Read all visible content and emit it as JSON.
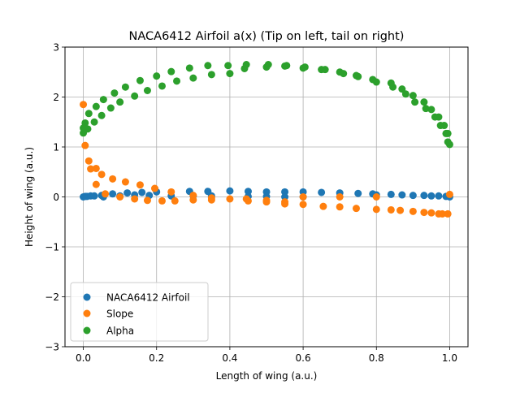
{
  "chart_data": {
    "type": "scatter",
    "title": "NACA6412 Airfoil a(x) (Tip on left, tail on right)",
    "xlabel": "Length of wing (a.u.)",
    "ylabel": "Height of wing (a.u.)",
    "xlim": [
      -0.05,
      1.05
    ],
    "ylim": [
      -3,
      3
    ],
    "xticks": [
      0.0,
      0.2,
      0.4,
      0.6,
      0.8,
      1.0
    ],
    "xtick_labels": [
      "0.0",
      "0.2",
      "0.4",
      "0.6",
      "0.8",
      "1.0"
    ],
    "yticks": [
      -3,
      -2,
      -1,
      0,
      1,
      2,
      3
    ],
    "ytick_labels": [
      "−3",
      "−2",
      "−1",
      "0",
      "1",
      "2",
      "3"
    ],
    "grid": true,
    "legend_position": "lower-left",
    "series": [
      {
        "name": "NACA6412 Airfoil",
        "color": "#1f77b4",
        "points": [
          [
            0.0,
            0.0
          ],
          [
            0.005,
            0.01
          ],
          [
            0.01,
            0.01
          ],
          [
            0.02,
            0.02
          ],
          [
            0.03,
            0.02
          ],
          [
            0.05,
            0.03
          ],
          [
            0.055,
            0.0
          ],
          [
            0.08,
            0.06
          ],
          [
            0.1,
            0.02
          ],
          [
            0.12,
            0.08
          ],
          [
            0.14,
            0.04
          ],
          [
            0.16,
            0.09
          ],
          [
            0.18,
            0.03
          ],
          [
            0.2,
            0.1
          ],
          [
            0.24,
            0.02
          ],
          [
            0.29,
            0.11
          ],
          [
            0.3,
            0.02
          ],
          [
            0.34,
            0.11
          ],
          [
            0.35,
            0.02
          ],
          [
            0.4,
            0.12
          ],
          [
            0.45,
            0.11
          ],
          [
            0.45,
            0.01
          ],
          [
            0.5,
            0.1
          ],
          [
            0.5,
            0.01
          ],
          [
            0.55,
            0.1
          ],
          [
            0.55,
            0.0
          ],
          [
            0.6,
            0.1
          ],
          [
            0.6,
            0.0
          ],
          [
            0.65,
            0.09
          ],
          [
            0.7,
            0.08
          ],
          [
            0.75,
            0.07
          ],
          [
            0.79,
            0.06
          ],
          [
            0.8,
            0.04
          ],
          [
            0.84,
            0.05
          ],
          [
            0.87,
            0.04
          ],
          [
            0.9,
            0.03
          ],
          [
            0.93,
            0.03
          ],
          [
            0.95,
            0.02
          ],
          [
            0.97,
            0.02
          ],
          [
            0.99,
            0.01
          ],
          [
            1.0,
            0.0
          ]
        ]
      },
      {
        "name": "Slope",
        "color": "#ff7f0e",
        "points": [
          [
            0.0,
            1.85
          ],
          [
            0.005,
            1.03
          ],
          [
            0.015,
            0.72
          ],
          [
            0.02,
            0.56
          ],
          [
            0.035,
            0.57
          ],
          [
            0.035,
            0.25
          ],
          [
            0.05,
            0.45
          ],
          [
            0.06,
            0.06
          ],
          [
            0.08,
            0.36
          ],
          [
            0.1,
            0.0
          ],
          [
            0.115,
            0.3
          ],
          [
            0.14,
            -0.04
          ],
          [
            0.155,
            0.24
          ],
          [
            0.175,
            -0.07
          ],
          [
            0.195,
            0.17
          ],
          [
            0.215,
            -0.08
          ],
          [
            0.24,
            0.1
          ],
          [
            0.25,
            -0.08
          ],
          [
            0.3,
            0.03
          ],
          [
            0.3,
            -0.06
          ],
          [
            0.35,
            -0.02
          ],
          [
            0.35,
            -0.06
          ],
          [
            0.4,
            -0.04
          ],
          [
            0.445,
            -0.04
          ],
          [
            0.45,
            -0.08
          ],
          [
            0.5,
            -0.07
          ],
          [
            0.5,
            -0.1
          ],
          [
            0.55,
            -0.1
          ],
          [
            0.55,
            -0.14
          ],
          [
            0.6,
            -0.15
          ],
          [
            0.6,
            0.0
          ],
          [
            0.655,
            -0.19
          ],
          [
            0.7,
            -0.2
          ],
          [
            0.7,
            0.0
          ],
          [
            0.745,
            -0.23
          ],
          [
            0.8,
            -0.25
          ],
          [
            0.8,
            0.0
          ],
          [
            0.84,
            -0.26
          ],
          [
            0.865,
            -0.27
          ],
          [
            0.9,
            -0.29
          ],
          [
            0.93,
            -0.31
          ],
          [
            0.95,
            -0.32
          ],
          [
            0.97,
            -0.34
          ],
          [
            0.98,
            -0.34
          ],
          [
            0.995,
            -0.34
          ],
          [
            1.0,
            0.05
          ]
        ]
      },
      {
        "name": "Alpha",
        "color": "#2ca02c",
        "points": [
          [
            0.0,
            1.28
          ],
          [
            0.0,
            1.38
          ],
          [
            0.005,
            1.48
          ],
          [
            0.012,
            1.36
          ],
          [
            0.015,
            1.67
          ],
          [
            0.03,
            1.5
          ],
          [
            0.035,
            1.81
          ],
          [
            0.05,
            1.63
          ],
          [
            0.055,
            1.95
          ],
          [
            0.075,
            1.78
          ],
          [
            0.085,
            2.08
          ],
          [
            0.1,
            1.9
          ],
          [
            0.115,
            2.2
          ],
          [
            0.14,
            2.02
          ],
          [
            0.155,
            2.33
          ],
          [
            0.175,
            2.13
          ],
          [
            0.2,
            2.42
          ],
          [
            0.215,
            2.22
          ],
          [
            0.24,
            2.51
          ],
          [
            0.255,
            2.32
          ],
          [
            0.29,
            2.58
          ],
          [
            0.3,
            2.38
          ],
          [
            0.34,
            2.63
          ],
          [
            0.35,
            2.45
          ],
          [
            0.395,
            2.63
          ],
          [
            0.4,
            2.47
          ],
          [
            0.44,
            2.57
          ],
          [
            0.445,
            2.65
          ],
          [
            0.5,
            2.6
          ],
          [
            0.505,
            2.65
          ],
          [
            0.55,
            2.62
          ],
          [
            0.555,
            2.63
          ],
          [
            0.6,
            2.58
          ],
          [
            0.605,
            2.6
          ],
          [
            0.65,
            2.55
          ],
          [
            0.66,
            2.55
          ],
          [
            0.7,
            2.5
          ],
          [
            0.71,
            2.47
          ],
          [
            0.745,
            2.43
          ],
          [
            0.75,
            2.41
          ],
          [
            0.79,
            2.35
          ],
          [
            0.8,
            2.3
          ],
          [
            0.84,
            2.28
          ],
          [
            0.845,
            2.2
          ],
          [
            0.87,
            2.16
          ],
          [
            0.88,
            2.06
          ],
          [
            0.9,
            2.03
          ],
          [
            0.905,
            1.9
          ],
          [
            0.93,
            1.9
          ],
          [
            0.935,
            1.77
          ],
          [
            0.95,
            1.75
          ],
          [
            0.96,
            1.6
          ],
          [
            0.97,
            1.6
          ],
          [
            0.975,
            1.43
          ],
          [
            0.985,
            1.43
          ],
          [
            0.99,
            1.27
          ],
          [
            0.995,
            1.27
          ],
          [
            0.995,
            1.1
          ],
          [
            1.0,
            1.05
          ]
        ]
      }
    ]
  }
}
